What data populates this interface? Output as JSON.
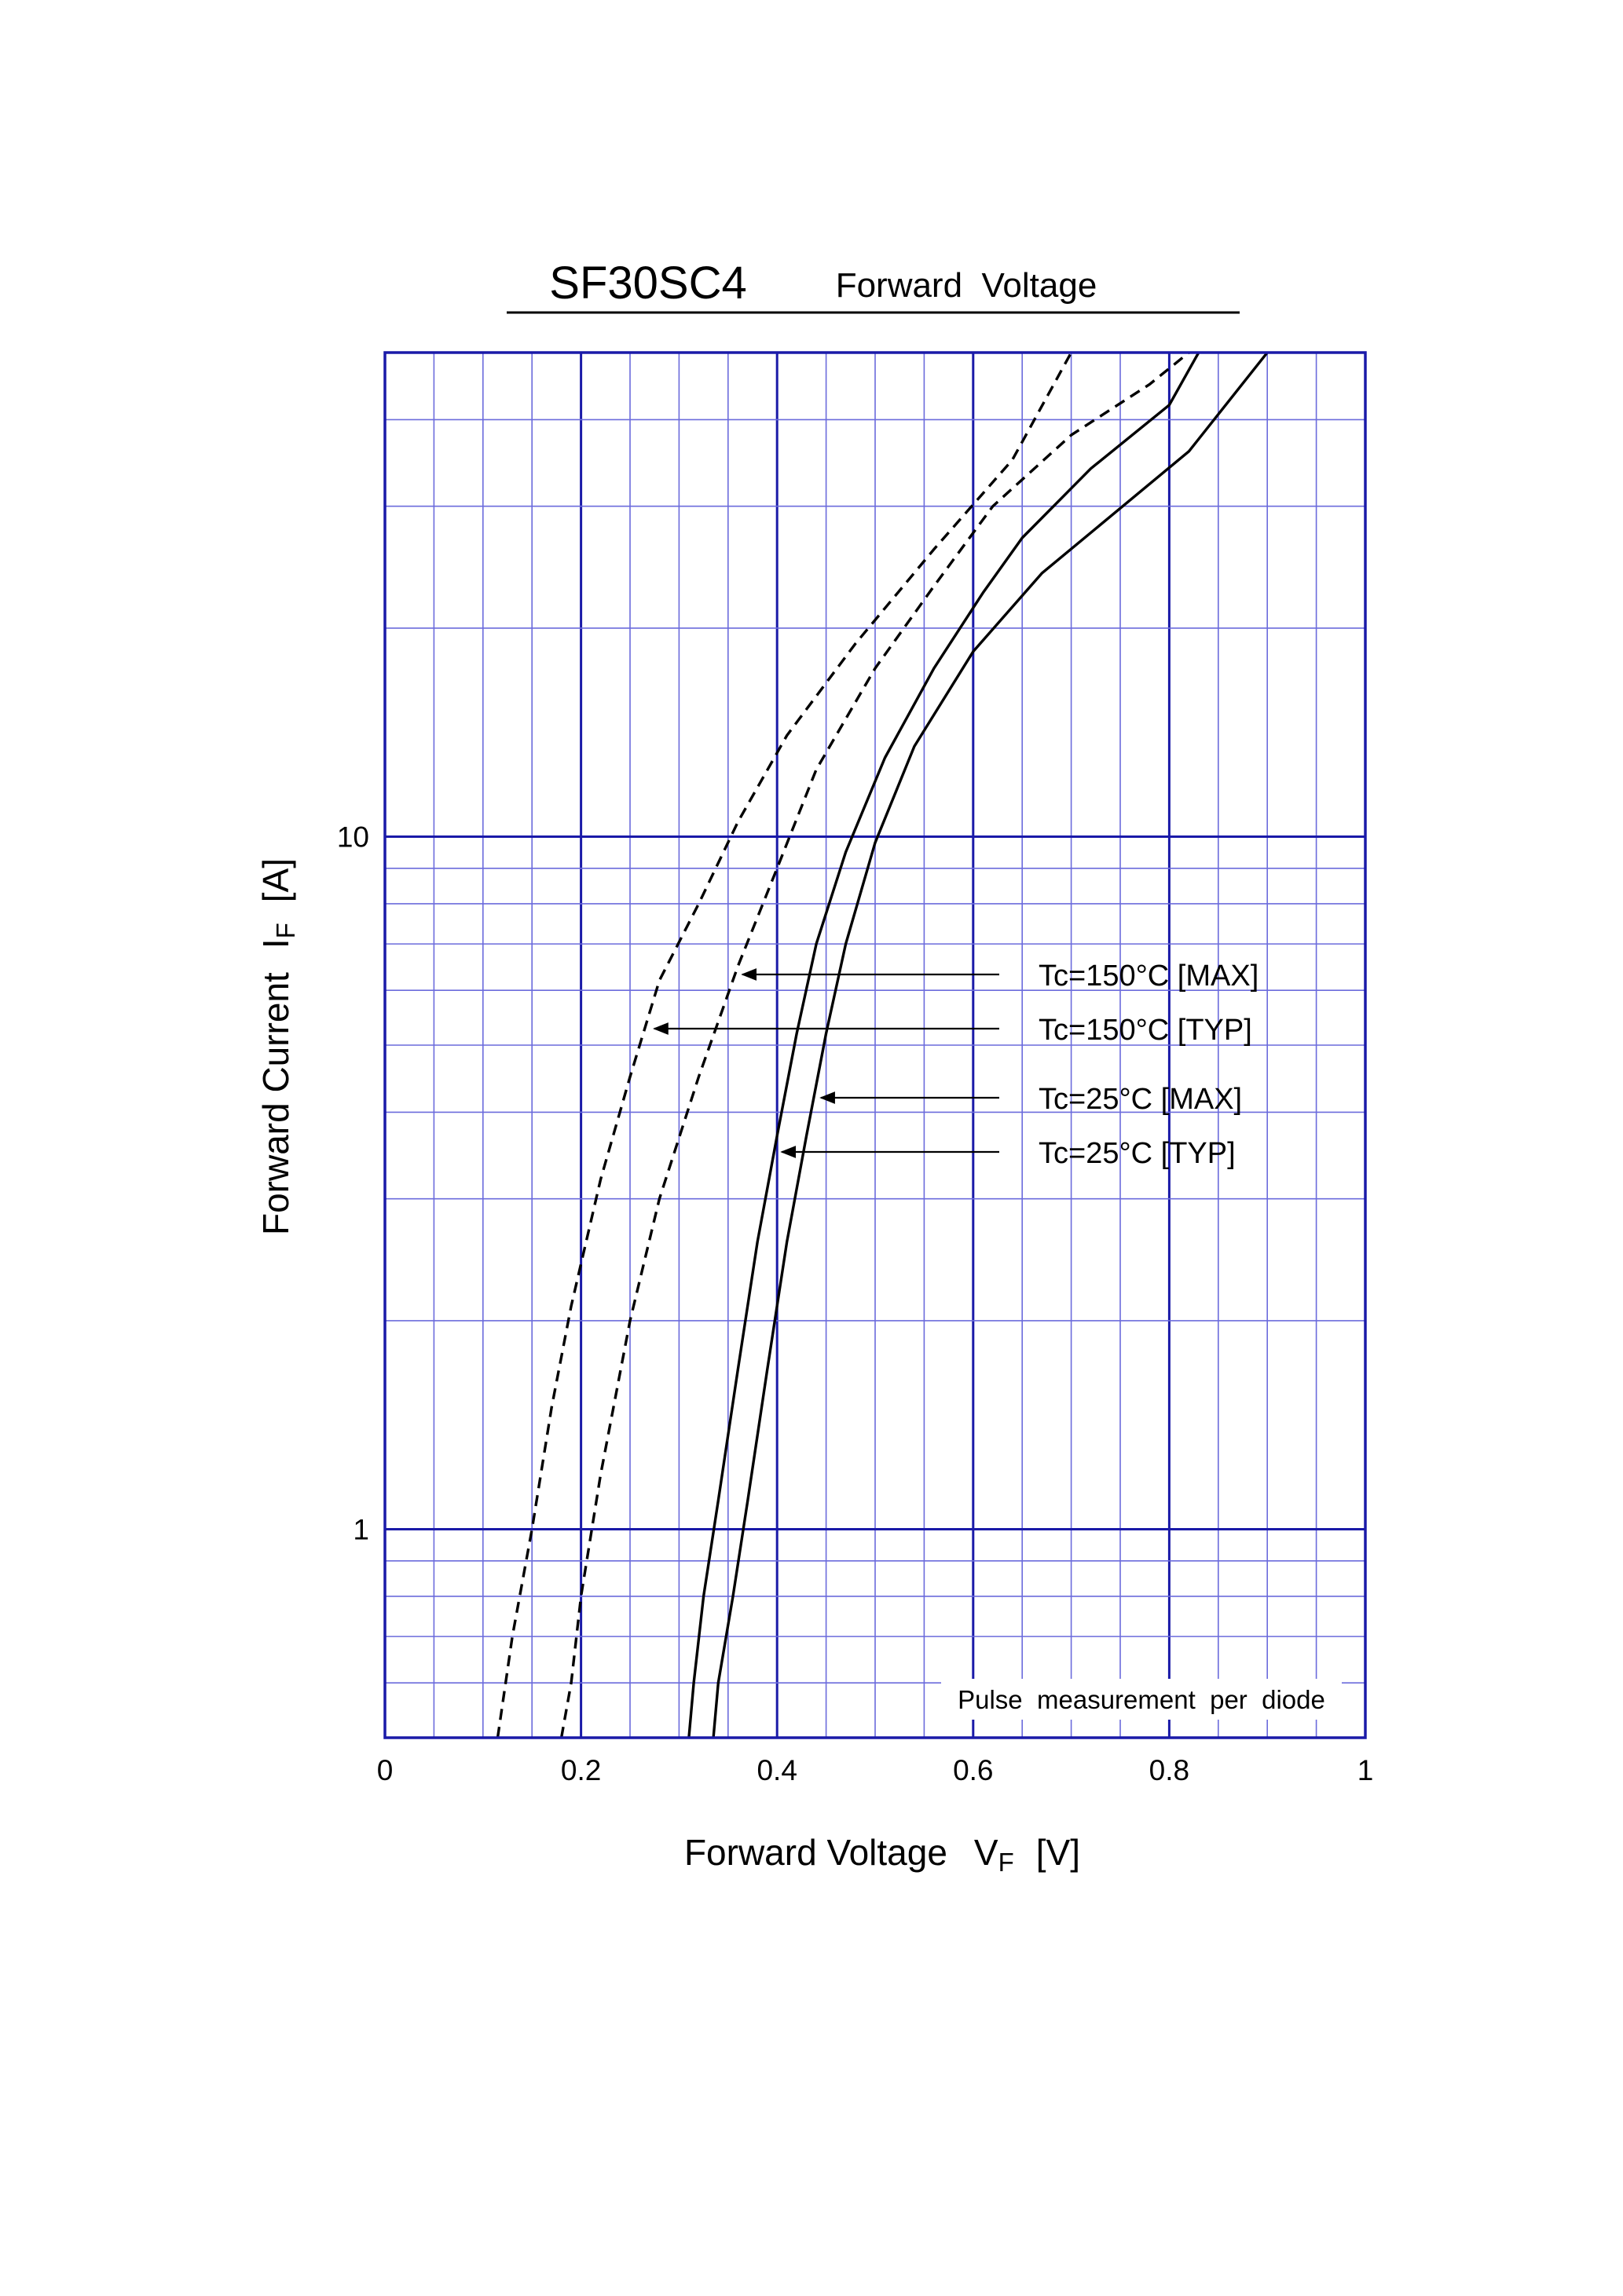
{
  "chart_data": {
    "type": "line",
    "title": "SF30SC4",
    "subtitle": "Forward  Voltage",
    "xlabel": "Forward Voltage",
    "xlabel_symbol": "V",
    "xlabel_sub": "F",
    "xlabel_unit": "[V]",
    "ylabel": "Forward Current",
    "ylabel_symbol": "I",
    "ylabel_sub": "F",
    "ylabel_unit": "[A]",
    "xlim": [
      0,
      1
    ],
    "ylim": [
      0.5,
      50
    ],
    "yscale": "log",
    "grid": true,
    "x_ticks": [
      {
        "value": 0,
        "label": "0"
      },
      {
        "value": 0.2,
        "label": "0.2"
      },
      {
        "value": 0.4,
        "label": "0.4"
      },
      {
        "value": 0.6,
        "label": "0.6"
      },
      {
        "value": 0.8,
        "label": "0.8"
      },
      {
        "value": 1,
        "label": "1"
      }
    ],
    "y_ticks": [
      {
        "value": 1,
        "label": "1"
      },
      {
        "value": 10,
        "label": "10"
      }
    ],
    "note": "Pulse  measurement  per  diode",
    "colors": {
      "grid_minor": "#6b6bdc",
      "grid_major": "#1a1aa8",
      "frame": "#1a1aa8",
      "curves": "#000000"
    },
    "series": [
      {
        "name": "Tc=150°C [MAX]",
        "style": "dashed",
        "points": [
          [
            0.18,
            0.5
          ],
          [
            0.19,
            0.6
          ],
          [
            0.2,
            0.8
          ],
          [
            0.22,
            1.2
          ],
          [
            0.25,
            2.0
          ],
          [
            0.28,
            3.0
          ],
          [
            0.32,
            4.5
          ],
          [
            0.36,
            6.5
          ],
          [
            0.4,
            9.0
          ],
          [
            0.44,
            12.5
          ],
          [
            0.5,
            17.5
          ],
          [
            0.56,
            23
          ],
          [
            0.62,
            30
          ],
          [
            0.7,
            38
          ],
          [
            0.78,
            45
          ],
          [
            0.82,
            50
          ]
        ]
      },
      {
        "name": "Tc=150°C [TYP]",
        "style": "dashed",
        "points": [
          [
            0.115,
            0.5
          ],
          [
            0.13,
            0.7
          ],
          [
            0.15,
            1.0
          ],
          [
            0.17,
            1.5
          ],
          [
            0.19,
            2.1
          ],
          [
            0.22,
            3.2
          ],
          [
            0.25,
            4.5
          ],
          [
            0.28,
            6.2
          ],
          [
            0.32,
            8.0
          ],
          [
            0.36,
            10.5
          ],
          [
            0.41,
            14
          ],
          [
            0.48,
            19
          ],
          [
            0.56,
            26
          ],
          [
            0.64,
            35
          ],
          [
            0.7,
            50
          ]
        ]
      },
      {
        "name": "Tc=25°C [MAX]",
        "style": "solid",
        "points": [
          [
            0.335,
            0.5
          ],
          [
            0.34,
            0.6
          ],
          [
            0.355,
            0.8
          ],
          [
            0.37,
            1.1
          ],
          [
            0.39,
            1.7
          ],
          [
            0.41,
            2.6
          ],
          [
            0.43,
            3.7
          ],
          [
            0.45,
            5.2
          ],
          [
            0.47,
            7.0
          ],
          [
            0.5,
            9.8
          ],
          [
            0.54,
            13.5
          ],
          [
            0.6,
            18.5
          ],
          [
            0.67,
            24
          ],
          [
            0.74,
            29
          ],
          [
            0.82,
            36
          ],
          [
            0.9,
            50
          ]
        ]
      },
      {
        "name": "Tc=25°C [TYP]",
        "style": "solid",
        "points": [
          [
            0.31,
            0.5
          ],
          [
            0.315,
            0.6
          ],
          [
            0.325,
            0.8
          ],
          [
            0.34,
            1.1
          ],
          [
            0.36,
            1.7
          ],
          [
            0.38,
            2.6
          ],
          [
            0.4,
            3.7
          ],
          [
            0.42,
            5.2
          ],
          [
            0.44,
            7.0
          ],
          [
            0.47,
            9.5
          ],
          [
            0.51,
            13
          ],
          [
            0.56,
            17.5
          ],
          [
            0.61,
            22.5
          ],
          [
            0.65,
            27
          ],
          [
            0.72,
            34
          ],
          [
            0.8,
            42
          ],
          [
            0.83,
            50
          ]
        ]
      }
    ],
    "annotations": [
      {
        "text": "Tc=150°C [MAX]",
        "target": [
          0.36,
          6.6
        ]
      },
      {
        "text": "Tc=150°C [TYP]",
        "target": [
          0.27,
          5.2
        ]
      },
      {
        "text": "Tc=25°C [MAX]",
        "target": [
          0.44,
          4.1
        ]
      },
      {
        "text": "Tc=25°C [TYP]",
        "target": [
          0.4,
          3.45
        ]
      }
    ]
  }
}
